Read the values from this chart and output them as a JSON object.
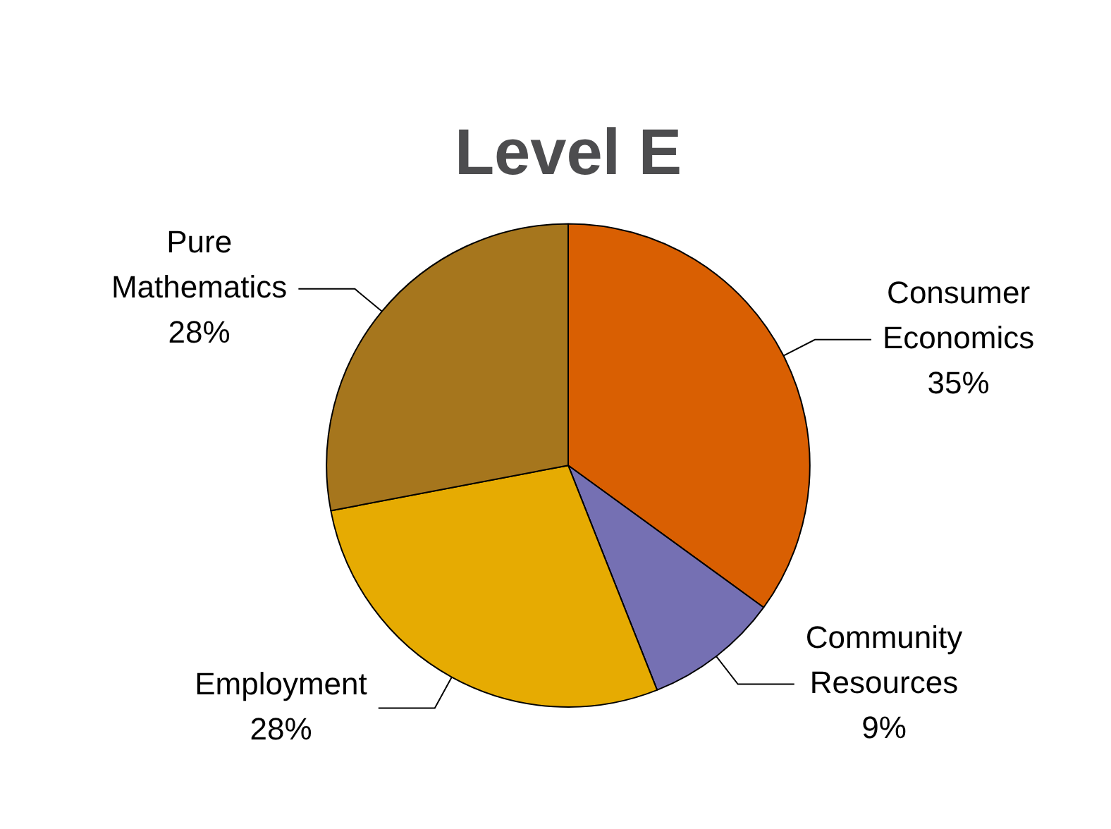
{
  "chart_data": {
    "type": "pie",
    "title": "Level E",
    "categories": [
      "Consumer Economics",
      "Community Resources",
      "Employment",
      "Pure Mathematics"
    ],
    "values": [
      35,
      9,
      28,
      28
    ],
    "value_labels": [
      "35%",
      "9%",
      "28%",
      "28%"
    ],
    "colors": [
      "#d95f02",
      "#7570b3",
      "#e6ab02",
      "#a6761d"
    ],
    "legend": false
  }
}
